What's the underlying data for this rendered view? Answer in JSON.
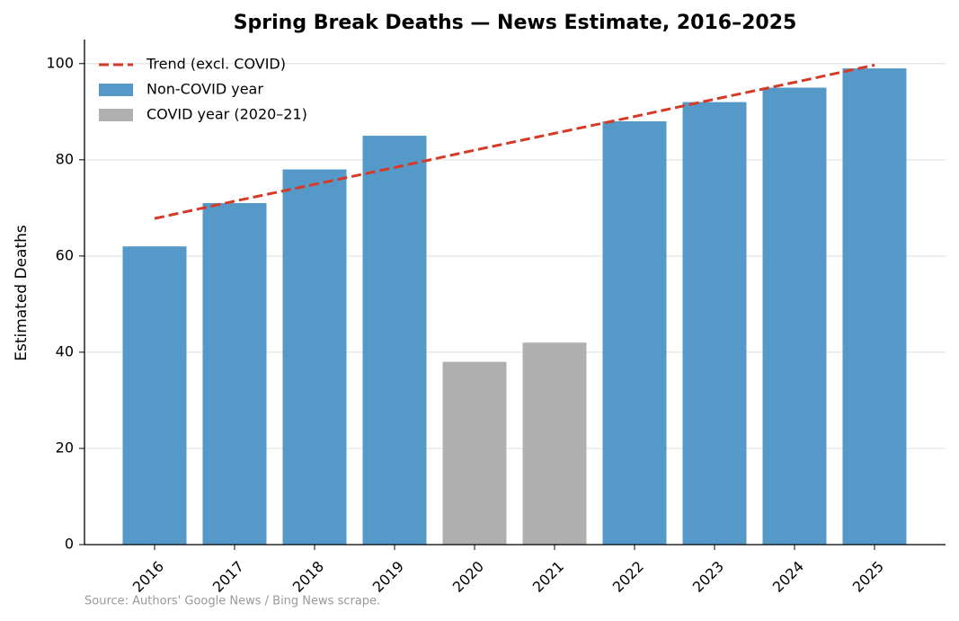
{
  "chart_data": {
    "type": "bar",
    "title": "Spring Break Deaths — News Estimate, 2016–2025",
    "y_label": "Estimated Deaths",
    "source": "Source: Authors' Google News / Bing News scrape.",
    "categories": [
      "2016",
      "2017",
      "2018",
      "2019",
      "2020",
      "2021",
      "2022",
      "2023",
      "2024",
      "2025"
    ],
    "series": [
      {
        "name": "Trend (excl. COVID)",
        "type": "line",
        "dashed": true,
        "color": "#d63a26",
        "values": [
          67.8,
          71.4,
          74.9,
          78.4,
          82.0,
          85.5,
          89.0,
          92.6,
          96.1,
          99.7
        ]
      },
      {
        "name": "Non-COVID year",
        "type": "bar",
        "color": "#5599c8",
        "values": [
          62,
          71,
          78,
          85,
          null,
          null,
          88,
          92,
          95,
          99
        ]
      },
      {
        "name": "COVID year (2020–21)",
        "type": "bar",
        "color": "#b0b0b0",
        "values": [
          null,
          null,
          null,
          null,
          38,
          42,
          null,
          null,
          null,
          null
        ]
      }
    ],
    "ylim": [
      0,
      105
    ],
    "yticks": [
      0,
      20,
      40,
      60,
      80,
      100
    ],
    "grid": true,
    "legend": "upper left"
  }
}
